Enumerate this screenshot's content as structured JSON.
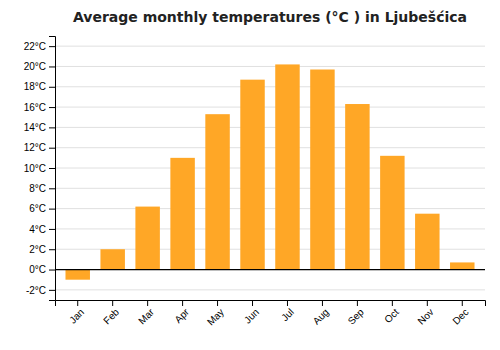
{
  "chart_data": {
    "type": "bar",
    "title": "Average monthly temperatures (°C ) in Ljubešćica",
    "categories": [
      "Jan",
      "Feb",
      "Mar",
      "Apr",
      "May",
      "Jun",
      "Jul",
      "Aug",
      "Sep",
      "Oct",
      "Nov",
      "Dec"
    ],
    "values": [
      -1.0,
      2.0,
      6.2,
      11.0,
      15.3,
      18.7,
      20.2,
      19.7,
      16.3,
      11.2,
      5.5,
      0.7
    ],
    "color": "#FFA726",
    "ylim": [
      -3,
      23
    ],
    "yticks": [
      {
        "value": -2,
        "label": "-2°C"
      },
      {
        "value": 0,
        "label": "0°C"
      },
      {
        "value": 2,
        "label": "2°C"
      },
      {
        "value": 4,
        "label": "4°C"
      },
      {
        "value": 6,
        "label": "6°C"
      },
      {
        "value": 8,
        "label": "8°C"
      },
      {
        "value": 10,
        "label": "10°C"
      },
      {
        "value": 12,
        "label": "12°C"
      },
      {
        "value": 14,
        "label": "14°C"
      },
      {
        "value": 16,
        "label": "16°C"
      },
      {
        "value": 18,
        "label": "18°C"
      },
      {
        "value": 20,
        "label": "20°C"
      },
      {
        "value": 22,
        "label": "22°C"
      }
    ],
    "grid": true
  }
}
